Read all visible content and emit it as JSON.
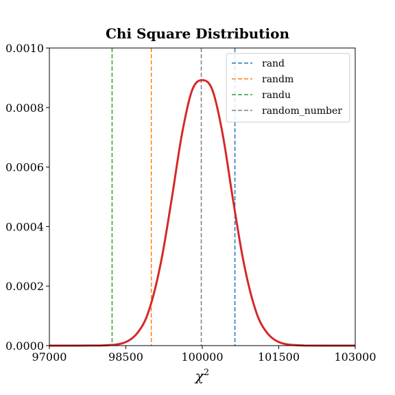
{
  "chart_data": {
    "type": "line",
    "title": "Chi Square Distribution",
    "xlabel": "χ",
    "xlabel_sup": "2",
    "ylabel": "",
    "xlim": [
      97000,
      103000
    ],
    "ylim": [
      0,
      0.001
    ],
    "xticks": [
      97000,
      98500,
      100000,
      101500,
      103000
    ],
    "xtick_labels": [
      "97000",
      "98500",
      "100000",
      "101500",
      "103000"
    ],
    "yticks": [
      0,
      0.0002,
      0.0004,
      0.0006,
      0.0008,
      0.001
    ],
    "ytick_labels": [
      "0.0000",
      "0.0002",
      "0.0004",
      "0.0006",
      "0.0008",
      "0.0010"
    ],
    "grid": false,
    "legend_position": "top-right",
    "curve": {
      "color": "#d62728",
      "x": [
        97000,
        98000,
        98500,
        98800,
        99000,
        99200,
        99400,
        99600,
        99800,
        100000,
        100200,
        100400,
        100600,
        100800,
        101000,
        101200,
        101500,
        102000,
        103000
      ],
      "y": [
        0,
        4e-07,
        1.22e-05,
        6e-05,
        0.000144,
        0.00029,
        0.000493,
        0.00071,
        0.000858,
        0.000892,
        0.000858,
        0.00071,
        0.000493,
        0.00029,
        0.000144,
        6e-05,
        1.22e-05,
        4e-07,
        0
      ]
    },
    "vlines": [
      {
        "name": "rand",
        "x": 100640,
        "color": "#1f77b4"
      },
      {
        "name": "randm",
        "x": 99000,
        "color": "#ff7f0e"
      },
      {
        "name": "randu",
        "x": 98230,
        "color": "#2ca02c"
      },
      {
        "name": "random_number",
        "x": 99980,
        "color": "#7f7f7f"
      }
    ]
  }
}
